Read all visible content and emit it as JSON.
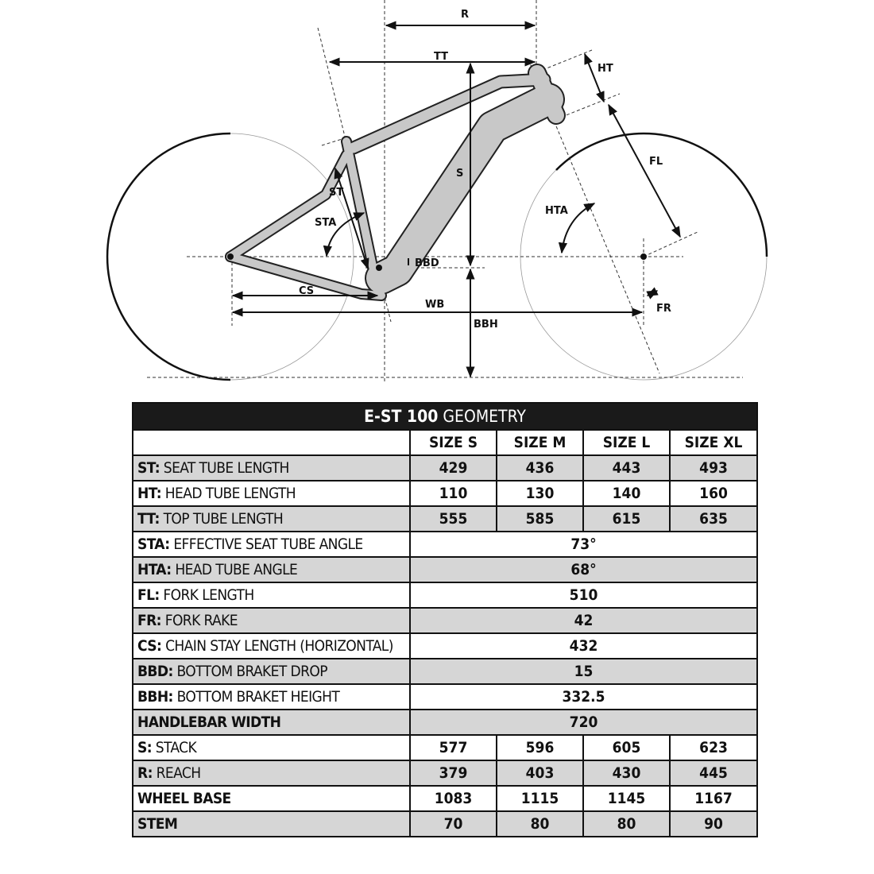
{
  "diagram": {
    "labels": {
      "R": "R",
      "TT": "TT",
      "HT": "HT",
      "S": "S",
      "ST": "ST",
      "STA": "STA",
      "HTA": "HTA",
      "FL": "FL",
      "BBD": "BBD",
      "CS": "CS",
      "WB": "WB",
      "BBH": "BBH",
      "FR": "FR"
    },
    "frame_color": "#c8c8c8"
  },
  "table": {
    "title_bold": "E-ST 100",
    "title_rest": " GEOMETRY",
    "sizes": [
      "SIZE S",
      "SIZE M",
      "SIZE L",
      "SIZE XL"
    ],
    "rows": [
      {
        "code": "ST:",
        "name": " SEAT TUBE LENGTH",
        "values": [
          "429",
          "436",
          "443",
          "493"
        ]
      },
      {
        "code": "HT:",
        "name": " HEAD TUBE LENGTH",
        "values": [
          "110",
          "130",
          "140",
          "160"
        ]
      },
      {
        "code": "TT:",
        "name": " TOP TUBE LENGTH",
        "values": [
          "555",
          "585",
          "615",
          "635"
        ]
      },
      {
        "code": "STA:",
        "name": " EFFECTIVE SEAT TUBE ANGLE",
        "values": [
          "73°"
        ]
      },
      {
        "code": "HTA:",
        "name": " HEAD TUBE ANGLE",
        "values": [
          "68°"
        ]
      },
      {
        "code": "FL:",
        "name": " FORK LENGTH",
        "values": [
          "510"
        ]
      },
      {
        "code": "FR:",
        "name": " FORK RAKE",
        "values": [
          "42"
        ]
      },
      {
        "code": "CS:",
        "name": " CHAIN STAY LENGTH (HORIZONTAL)",
        "values": [
          "432"
        ]
      },
      {
        "code": "BBD:",
        "name": " BOTTOM BRAKET DROP",
        "values": [
          "15"
        ]
      },
      {
        "code": "BBH:",
        "name": " BOTTOM BRAKET HEIGHT",
        "values": [
          "332.5"
        ]
      },
      {
        "code": "HANDLEBAR WIDTH",
        "name": "",
        "values": [
          "720"
        ]
      },
      {
        "code": "S:",
        "name": " STACK",
        "values": [
          "577",
          "596",
          "605",
          "623"
        ]
      },
      {
        "code": "R:",
        "name": " REACH",
        "values": [
          "379",
          "403",
          "430",
          "445"
        ]
      },
      {
        "code": "WHEEL BASE",
        "name": "",
        "values": [
          "1083",
          "1115",
          "1145",
          "1167"
        ]
      },
      {
        "code": "STEM",
        "name": "",
        "values": [
          "70",
          "80",
          "80",
          "90"
        ]
      }
    ]
  }
}
